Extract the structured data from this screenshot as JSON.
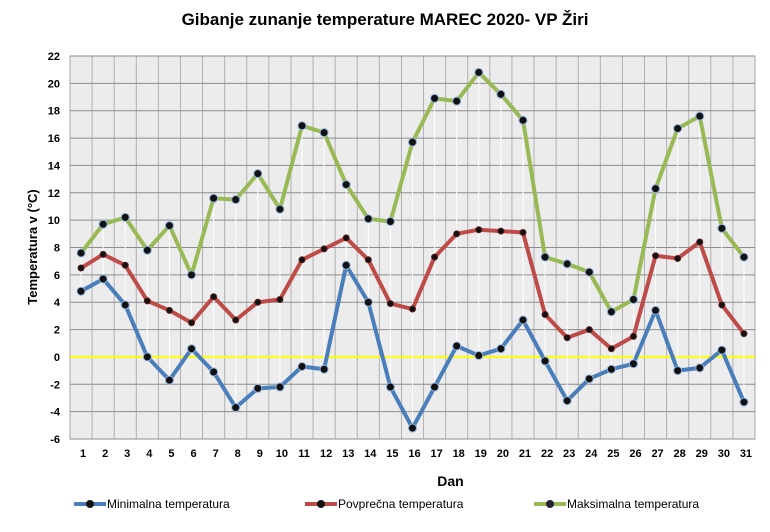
{
  "chart_data": {
    "type": "line",
    "title": "Gibanje zunanje temperature MAREC 2020- VP Žiri",
    "xlabel": "Dan",
    "ylabel": "Temperatura v (°C)",
    "ylim": [
      -6,
      22
    ],
    "ytick_step": 2,
    "grid": true,
    "legend_position": "bottom",
    "categories": [
      "1",
      "2",
      "3",
      "4",
      "5",
      "6",
      "7",
      "8",
      "9",
      "10",
      "11",
      "12",
      "13",
      "14",
      "15",
      "16",
      "17",
      "18",
      "19",
      "20",
      "21",
      "22",
      "23",
      "24",
      "25",
      "26",
      "27",
      "28",
      "29",
      "30",
      "31"
    ],
    "series": [
      {
        "name": "Minimalna temperatura",
        "color": "#4a7ebb",
        "values": [
          4.8,
          5.7,
          3.8,
          0.0,
          -1.7,
          0.6,
          -1.1,
          -3.7,
          -2.3,
          -2.2,
          -0.7,
          -0.9,
          6.7,
          4.0,
          -2.2,
          -5.2,
          -2.2,
          0.8,
          0.1,
          0.6,
          2.7,
          -0.3,
          -3.2,
          -1.6,
          -0.9,
          -0.5,
          3.4,
          -1.0,
          -0.8,
          0.5,
          -3.3
        ]
      },
      {
        "name": "Povprečna temperatura",
        "color": "#be4b48",
        "values": [
          6.5,
          7.5,
          6.7,
          4.1,
          3.4,
          2.5,
          4.4,
          2.7,
          4.0,
          4.2,
          7.1,
          7.9,
          8.7,
          7.1,
          3.9,
          3.5,
          7.3,
          9.0,
          9.3,
          9.2,
          9.1,
          3.1,
          1.4,
          2.0,
          0.6,
          1.5,
          7.4,
          7.2,
          8.4,
          3.8,
          1.7
        ]
      },
      {
        "name": "Maksimalna temperatura",
        "color": "#98b954",
        "values": [
          7.6,
          9.7,
          10.2,
          7.8,
          9.6,
          6.0,
          11.6,
          11.5,
          13.4,
          10.8,
          16.9,
          16.4,
          12.6,
          10.1,
          9.9,
          15.7,
          18.9,
          18.7,
          20.8,
          19.2,
          17.3,
          7.3,
          6.8,
          6.2,
          3.3,
          4.2,
          12.3,
          16.7,
          17.6,
          9.4,
          7.3
        ]
      }
    ],
    "reference_line": {
      "y": 0,
      "color": "#ffff00"
    }
  }
}
